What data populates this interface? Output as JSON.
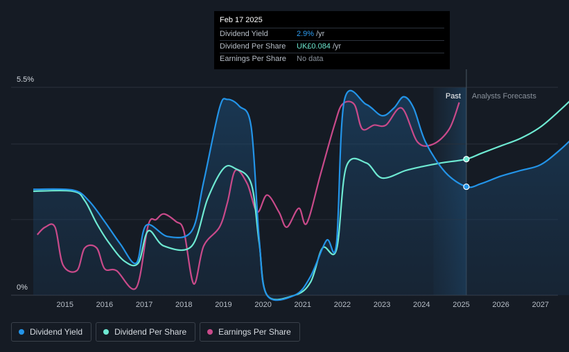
{
  "tooltip": {
    "date": "Feb 17 2025",
    "rows": [
      {
        "label": "Dividend Yield",
        "value": "2.9%",
        "unit": "/yr"
      },
      {
        "label": "Dividend Per Share",
        "value": "UK£0.084",
        "unit": "/yr"
      },
      {
        "label": "Earnings Per Share",
        "value": "No data",
        "unit": ""
      }
    ]
  },
  "regions": {
    "past": "Past",
    "forecast": "Analysts Forecasts"
  },
  "legend": [
    {
      "label": "Dividend Yield",
      "color": "#2394e8"
    },
    {
      "label": "Dividend Per Share",
      "color": "#6ee9d2"
    },
    {
      "label": "Earnings Per Share",
      "color": "#c94a8a"
    }
  ],
  "chart_data": {
    "type": "line",
    "ylim": [
      0,
      5.5
    ],
    "xlim": [
      2014.2,
      2028.0
    ],
    "y_tick_labels": [
      {
        "value": 5.5,
        "label": "5.5%"
      },
      {
        "value": 0,
        "label": "0%"
      }
    ],
    "x_ticks": [
      2015,
      2016,
      2017,
      2018,
      2019,
      2020,
      2021,
      2022,
      2023,
      2024,
      2025,
      2026,
      2027
    ],
    "forecast_start": 2025.13,
    "past_region_start": 2024.3,
    "series": [
      {
        "name": "Dividend Yield",
        "color": "#2394e8",
        "fill": true,
        "points": [
          [
            2014.2,
            2.8
          ],
          [
            2015.2,
            2.78
          ],
          [
            2015.6,
            2.5
          ],
          [
            2016.0,
            1.95
          ],
          [
            2016.4,
            1.35
          ],
          [
            2016.8,
            0.85
          ],
          [
            2017.05,
            1.85
          ],
          [
            2017.6,
            1.55
          ],
          [
            2018.2,
            1.7
          ],
          [
            2018.5,
            3.0
          ],
          [
            2018.9,
            4.95
          ],
          [
            2019.1,
            5.18
          ],
          [
            2019.4,
            5.0
          ],
          [
            2019.7,
            4.45
          ],
          [
            2019.9,
            1.5
          ],
          [
            2020.1,
            0.0
          ],
          [
            2020.8,
            0.0
          ],
          [
            2021.2,
            0.5
          ],
          [
            2021.6,
            1.45
          ],
          [
            2021.85,
            1.35
          ],
          [
            2022.05,
            5.15
          ],
          [
            2022.6,
            5.05
          ],
          [
            2023.0,
            4.75
          ],
          [
            2023.3,
            4.95
          ],
          [
            2023.55,
            5.25
          ],
          [
            2023.8,
            4.95
          ],
          [
            2024.1,
            4.05
          ],
          [
            2024.6,
            3.25
          ],
          [
            2025.13,
            2.87
          ],
          [
            2025.5,
            2.95
          ],
          [
            2026.0,
            3.15
          ],
          [
            2026.5,
            3.3
          ],
          [
            2027.0,
            3.45
          ],
          [
            2027.5,
            3.85
          ],
          [
            2028.0,
            4.35
          ]
        ]
      },
      {
        "name": "Dividend Per Share",
        "color": "#6ee9d2",
        "fill": false,
        "points": [
          [
            2014.2,
            2.75
          ],
          [
            2015.2,
            2.75
          ],
          [
            2015.5,
            2.5
          ],
          [
            2015.8,
            1.9
          ],
          [
            2016.1,
            1.4
          ],
          [
            2016.5,
            0.9
          ],
          [
            2016.85,
            0.85
          ],
          [
            2017.1,
            1.7
          ],
          [
            2017.5,
            1.3
          ],
          [
            2018.2,
            1.3
          ],
          [
            2018.6,
            2.55
          ],
          [
            2019.0,
            3.35
          ],
          [
            2019.3,
            3.35
          ],
          [
            2019.7,
            2.95
          ],
          [
            2019.9,
            1.4
          ],
          [
            2020.1,
            0.0
          ],
          [
            2020.8,
            0.0
          ],
          [
            2021.2,
            0.35
          ],
          [
            2021.5,
            1.25
          ],
          [
            2021.85,
            1.2
          ],
          [
            2022.1,
            3.4
          ],
          [
            2022.6,
            3.5
          ],
          [
            2023.0,
            3.1
          ],
          [
            2023.6,
            3.3
          ],
          [
            2024.0,
            3.4
          ],
          [
            2024.5,
            3.5
          ],
          [
            2025.13,
            3.6
          ],
          [
            2025.5,
            3.75
          ],
          [
            2026.0,
            3.95
          ],
          [
            2026.5,
            4.15
          ],
          [
            2027.0,
            4.45
          ],
          [
            2027.5,
            4.9
          ],
          [
            2028.0,
            5.4
          ]
        ]
      },
      {
        "name": "Earnings Per Share",
        "color": "#c94a8a",
        "fill": false,
        "points": [
          [
            2014.3,
            1.6
          ],
          [
            2014.5,
            1.8
          ],
          [
            2014.75,
            1.8
          ],
          [
            2014.95,
            0.8
          ],
          [
            2015.3,
            0.65
          ],
          [
            2015.5,
            1.25
          ],
          [
            2015.8,
            1.25
          ],
          [
            2016.0,
            0.7
          ],
          [
            2016.3,
            0.65
          ],
          [
            2016.8,
            0.2
          ],
          [
            2017.1,
            1.85
          ],
          [
            2017.3,
            2.0
          ],
          [
            2017.5,
            2.15
          ],
          [
            2017.8,
            1.95
          ],
          [
            2018.0,
            1.7
          ],
          [
            2018.25,
            0.3
          ],
          [
            2018.5,
            1.3
          ],
          [
            2018.9,
            1.8
          ],
          [
            2019.1,
            2.45
          ],
          [
            2019.3,
            3.3
          ],
          [
            2019.6,
            2.95
          ],
          [
            2019.85,
            2.2
          ],
          [
            2020.1,
            2.65
          ],
          [
            2020.4,
            2.2
          ],
          [
            2020.6,
            1.8
          ],
          [
            2020.9,
            2.3
          ],
          [
            2021.1,
            1.9
          ],
          [
            2021.45,
            3.2
          ],
          [
            2021.8,
            4.5
          ],
          [
            2022.0,
            5.05
          ],
          [
            2022.3,
            5.05
          ],
          [
            2022.5,
            4.4
          ],
          [
            2022.8,
            4.5
          ],
          [
            2023.1,
            4.5
          ],
          [
            2023.5,
            4.95
          ],
          [
            2023.9,
            4.05
          ],
          [
            2024.3,
            4.0
          ],
          [
            2024.7,
            4.4
          ],
          [
            2024.95,
            5.1
          ]
        ]
      }
    ],
    "markers": [
      {
        "series": "Dividend Per Share",
        "x": 2025.13,
        "y": 3.6
      },
      {
        "series": "Dividend Yield",
        "x": 2025.13,
        "y": 2.87
      }
    ]
  }
}
